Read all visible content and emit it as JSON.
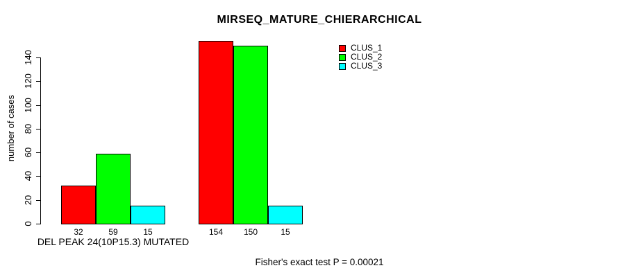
{
  "chart_data": {
    "type": "bar",
    "title": "MIRSEQ_MATURE_CHIERARCHICAL",
    "ylabel": "number of cases",
    "xlabel": "DEL PEAK 24(10P15.3) MUTATED",
    "ylim": [
      0,
      140
    ],
    "yticks": [
      0,
      20,
      40,
      60,
      80,
      100,
      120,
      140
    ],
    "categories": [
      "DEL PEAK 24(10P15.3) MUTATED",
      ""
    ],
    "series": [
      {
        "name": "CLUS_1",
        "color": "#ff0000",
        "values": [
          32,
          154
        ]
      },
      {
        "name": "CLUS_2",
        "color": "#00ff00",
        "values": [
          59,
          150
        ]
      },
      {
        "name": "CLUS_3",
        "color": "#00ffff",
        "values": [
          15,
          15
        ]
      }
    ],
    "legend_position": "top-right",
    "grid": false,
    "annotation": "Fisher's exact test P = 0.00021"
  },
  "colors": {
    "axis": "#000000",
    "text": "#000000",
    "background": "#ffffff"
  }
}
